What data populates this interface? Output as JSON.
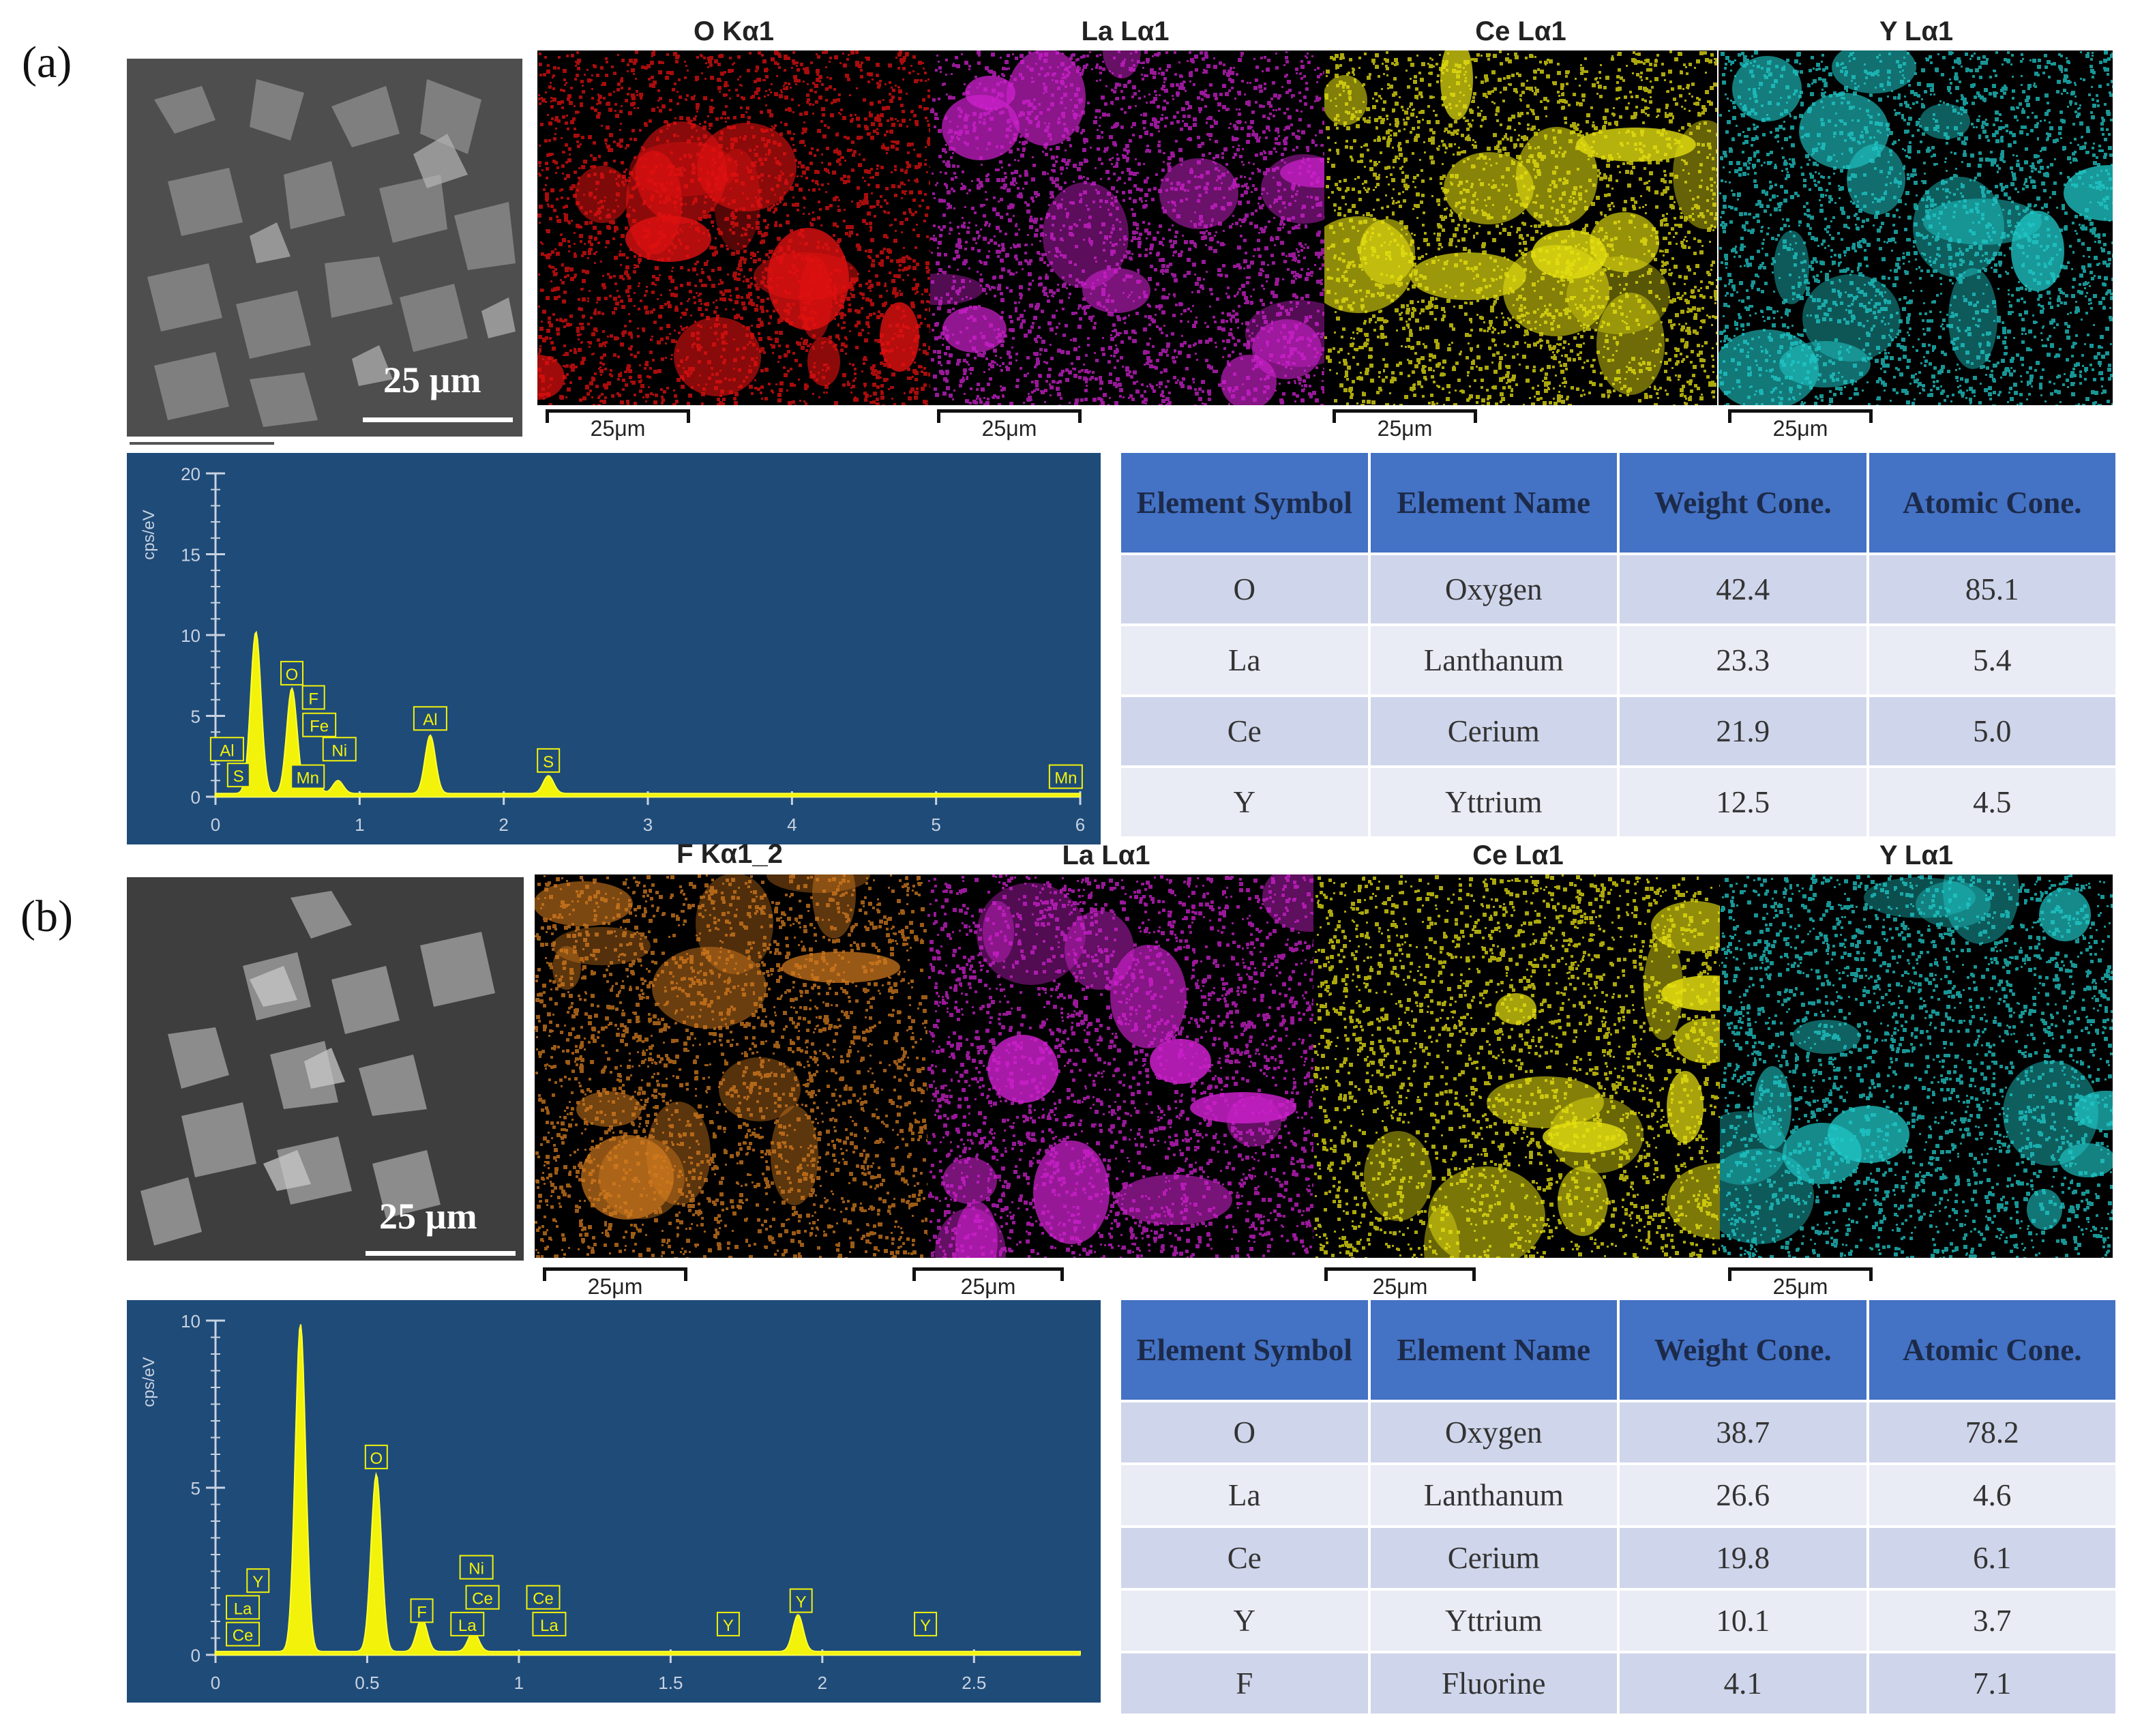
{
  "figure": {
    "panels": [
      {
        "label": "(a)",
        "sem_scale": "25 µm",
        "maps": [
          {
            "title": "O Kα1",
            "color": "#e01010",
            "scale": "25μm"
          },
          {
            "title": "La Lα1",
            "color": "#cc20cc",
            "scale": "25μm"
          },
          {
            "title": "Ce Lα1",
            "color": "#e6e010",
            "scale": "25μm"
          },
          {
            "title": "Y Lα1",
            "color": "#20c8c8",
            "scale": "25μm"
          }
        ],
        "table": {
          "headers": [
            "Element Symbol",
            "Element Name",
            "Weight Cone.",
            "Atomic Cone."
          ],
          "rows": [
            [
              "O",
              "Oxygen",
              "42.4",
              "85.1"
            ],
            [
              "La",
              "Lanthanum",
              "23.3",
              "5.4"
            ],
            [
              "Ce",
              "Cerium",
              "21.9",
              "5.0"
            ],
            [
              "Y",
              "Yttrium",
              "12.5",
              "4.5"
            ]
          ]
        }
      },
      {
        "label": "(b)",
        "sem_scale": "25 µm",
        "maps": [
          {
            "title": "F Kα1_2",
            "color": "#d27a1e",
            "scale": "25μm"
          },
          {
            "title": "La Lα1",
            "color": "#cc20cc",
            "scale": "25μm"
          },
          {
            "title": "Ce Lα1",
            "color": "#e6e010",
            "scale": "25μm"
          },
          {
            "title": "Y Lα1",
            "color": "#20c8c8",
            "scale": "25μm"
          }
        ],
        "table": {
          "headers": [
            "Element Symbol",
            "Element Name",
            "Weight Cone.",
            "Atomic Cone."
          ],
          "rows": [
            [
              "O",
              "Oxygen",
              "38.7",
              "78.2"
            ],
            [
              "La",
              "Lanthanum",
              "26.6",
              "4.6"
            ],
            [
              "Ce",
              "Cerium",
              "19.8",
              "6.1"
            ],
            [
              "Y",
              "Yttrium",
              "10.1",
              "3.7"
            ],
            [
              "F",
              "Fluorine",
              "4.1",
              "7.1"
            ]
          ]
        }
      }
    ]
  },
  "chart_data": [
    {
      "type": "line",
      "ylabel": "cps/eV",
      "xlim": [
        0,
        6
      ],
      "ylim": [
        0,
        20
      ],
      "x_ticks": [
        "0",
        "1",
        "2",
        "3",
        "4",
        "5",
        "6"
      ],
      "y_ticks": [
        "0",
        "5",
        "10",
        "15",
        "20"
      ],
      "peaks": [
        {
          "x": 0.28,
          "y": 10.0
        },
        {
          "x": 0.53,
          "y": 6.5
        },
        {
          "x": 0.68,
          "y": 1.2
        },
        {
          "x": 0.85,
          "y": 0.8
        },
        {
          "x": 1.49,
          "y": 3.6
        },
        {
          "x": 2.31,
          "y": 1.1
        }
      ],
      "annotations": [
        {
          "label": "Al",
          "x": 0.08,
          "y": 2.9
        },
        {
          "label": "S",
          "x": 0.16,
          "y": 1.3
        },
        {
          "label": "O",
          "x": 0.53,
          "y": 7.6
        },
        {
          "label": "F",
          "x": 0.68,
          "y": 6.1
        },
        {
          "label": "Fe",
          "x": 0.72,
          "y": 4.4
        },
        {
          "label": "Ni",
          "x": 0.86,
          "y": 2.9
        },
        {
          "label": "Mn",
          "x": 0.64,
          "y": 1.2
        },
        {
          "label": "Al",
          "x": 1.49,
          "y": 4.8
        },
        {
          "label": "S",
          "x": 2.31,
          "y": 2.2
        },
        {
          "label": "Mn",
          "x": 5.9,
          "y": 1.2
        }
      ]
    },
    {
      "type": "line",
      "ylabel": "cps/eV",
      "xlim": [
        0,
        2.85
      ],
      "ylim": [
        0,
        10
      ],
      "x_ticks": [
        "0",
        "0.5",
        "1",
        "1.5",
        "2",
        "2.5"
      ],
      "y_ticks": [
        "0",
        "5",
        "10"
      ],
      "peaks": [
        {
          "x": 0.28,
          "y": 9.8
        },
        {
          "x": 0.53,
          "y": 5.3
        },
        {
          "x": 0.68,
          "y": 1.0
        },
        {
          "x": 0.85,
          "y": 0.6
        },
        {
          "x": 1.92,
          "y": 1.1
        }
      ],
      "annotations": [
        {
          "label": "Y",
          "x": 0.14,
          "y": 2.2
        },
        {
          "label": "La",
          "x": 0.09,
          "y": 1.4
        },
        {
          "label": "Ce",
          "x": 0.09,
          "y": 0.6
        },
        {
          "label": "O",
          "x": 0.53,
          "y": 5.9
        },
        {
          "label": "F",
          "x": 0.68,
          "y": 1.3
        },
        {
          "label": "Ni",
          "x": 0.86,
          "y": 2.6
        },
        {
          "label": "Ce",
          "x": 0.88,
          "y": 1.7
        },
        {
          "label": "La",
          "x": 0.83,
          "y": 0.9
        },
        {
          "label": "Ce",
          "x": 1.08,
          "y": 1.7
        },
        {
          "label": "La",
          "x": 1.1,
          "y": 0.9
        },
        {
          "label": "Y",
          "x": 1.69,
          "y": 0.9
        },
        {
          "label": "Y",
          "x": 1.93,
          "y": 1.6
        },
        {
          "label": "Y",
          "x": 2.34,
          "y": 0.9
        }
      ]
    }
  ]
}
